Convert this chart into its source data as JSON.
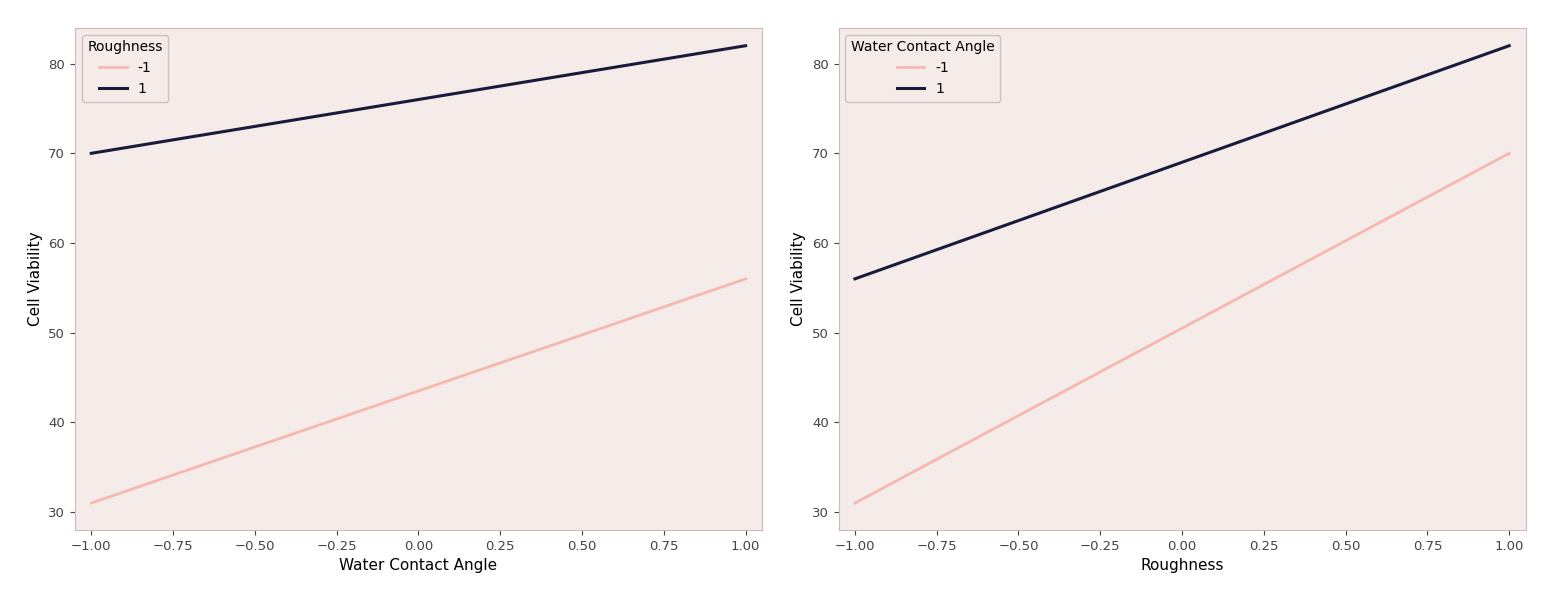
{
  "left": {
    "xlabel": "Water Contact Angle",
    "ylabel": "Cell Viability",
    "legend_title": "Roughness",
    "lines": [
      {
        "label": "-1",
        "x": [
          -1,
          1
        ],
        "y": [
          31,
          56
        ],
        "color": "#f4b8b0",
        "linewidth": 2.0
      },
      {
        "label": "1",
        "x": [
          -1,
          1
        ],
        "y": [
          70,
          82
        ],
        "color": "#1a1a3a",
        "linewidth": 2.2
      }
    ],
    "xlim": [
      -1.05,
      1.05
    ],
    "ylim": [
      28,
      84
    ],
    "xticks": [
      -1.0,
      -0.75,
      -0.5,
      -0.25,
      0.0,
      0.25,
      0.5,
      0.75,
      1.0
    ],
    "yticks": [
      30,
      40,
      50,
      60,
      70,
      80
    ]
  },
  "right": {
    "xlabel": "Roughness",
    "ylabel": "Cell Viability",
    "legend_title": "Water Contact Angle",
    "lines": [
      {
        "label": "-1",
        "x": [
          -1,
          1
        ],
        "y": [
          31,
          70
        ],
        "color": "#f4b8b0",
        "linewidth": 2.0
      },
      {
        "label": "1",
        "x": [
          -1,
          1
        ],
        "y": [
          56,
          82
        ],
        "color": "#1a1a3a",
        "linewidth": 2.2
      }
    ],
    "xlim": [
      -1.05,
      1.05
    ],
    "ylim": [
      28,
      84
    ],
    "xticks": [
      -1.0,
      -0.75,
      -0.5,
      -0.25,
      0.0,
      0.25,
      0.5,
      0.75,
      1.0
    ],
    "yticks": [
      30,
      40,
      50,
      60,
      70,
      80
    ]
  },
  "axes_facecolor": "#f5ece9",
  "figure_facecolor": "#ffffff",
  "spine_color": "#ccbbbb",
  "figsize": [
    15.55,
    6.01
  ],
  "dpi": 100
}
